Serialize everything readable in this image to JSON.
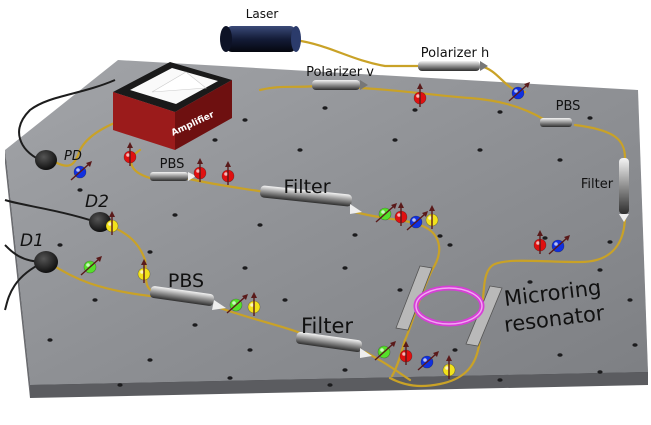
{
  "labels": {
    "laser": "Laser",
    "polarizer_h": "Polarizer h",
    "polarizer_v": "Polarizer v",
    "amplifier": "Amplifier",
    "pbs_top_right": "PBS",
    "pbs_upper_left": "PBS",
    "pbs_lower": "PBS",
    "filter_right": "Filter",
    "filter_middle": "Filter",
    "filter_bottom": "Filter",
    "pd": "PD",
    "d1": "D1",
    "d2": "D2",
    "microring_line1": "Microring",
    "microring_line2": "resonator"
  },
  "colors": {
    "table": "#8e9094",
    "fiber": "#c9a227",
    "ring": "#d63fd6",
    "photon_red": "#e01010",
    "photon_blue": "#1030e0",
    "photon_green": "#55e02a",
    "photon_yellow": "#f2e21c",
    "amplifier_body": "#9b1b1b"
  }
}
